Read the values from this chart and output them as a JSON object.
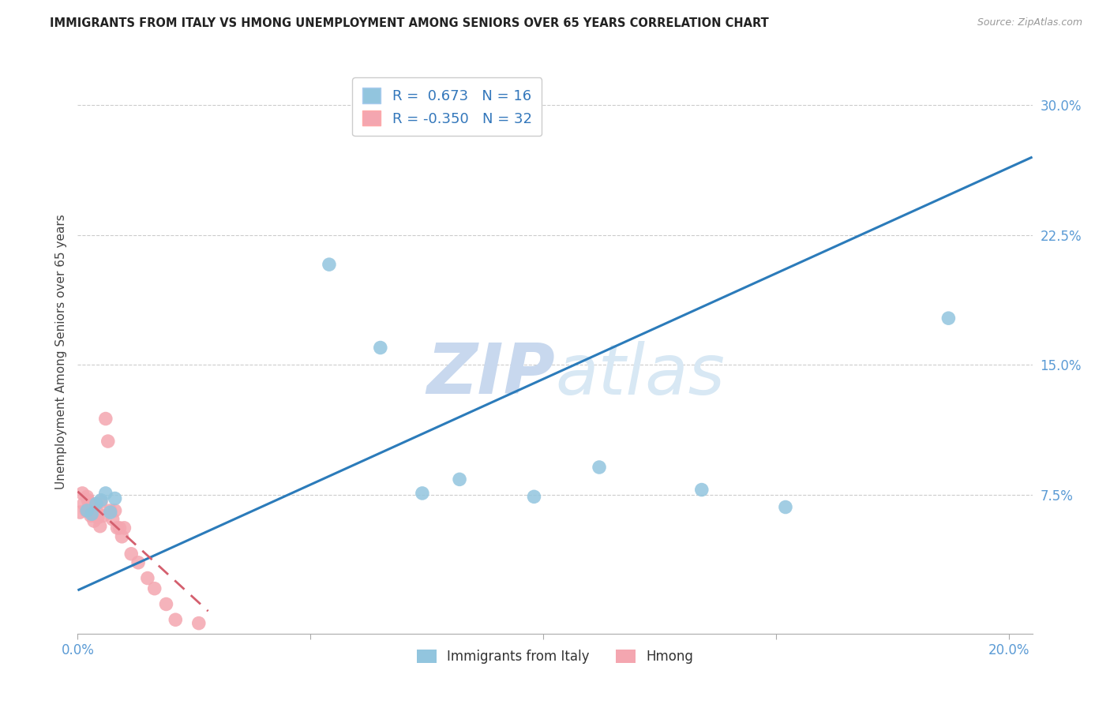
{
  "title": "IMMIGRANTS FROM ITALY VS HMONG UNEMPLOYMENT AMONG SENIORS OVER 65 YEARS CORRELATION CHART",
  "source": "Source: ZipAtlas.com",
  "ylabel": "Unemployment Among Seniors over 65 years",
  "xlim": [
    0.0,
    0.205
  ],
  "ylim": [
    -0.005,
    0.32
  ],
  "legend_italy_R": "0.673",
  "legend_italy_N": "16",
  "legend_hmong_R": "-0.350",
  "legend_hmong_N": "32",
  "italy_color": "#92c5de",
  "hmong_color": "#f4a6b0",
  "italy_line_color": "#2b7bba",
  "hmong_line_color": "#d45f6e",
  "watermark_color": "#dde8f5",
  "grid_color": "#cccccc",
  "tick_color": "#5b9bd5",
  "title_color": "#222222",
  "source_color": "#999999",
  "ylabel_color": "#444444",
  "italy_x": [
    0.002,
    0.003,
    0.004,
    0.005,
    0.006,
    0.007,
    0.008,
    0.054,
    0.065,
    0.074,
    0.082,
    0.098,
    0.112,
    0.134,
    0.152,
    0.187
  ],
  "italy_y": [
    0.066,
    0.064,
    0.07,
    0.072,
    0.076,
    0.065,
    0.073,
    0.208,
    0.16,
    0.076,
    0.084,
    0.074,
    0.091,
    0.078,
    0.068,
    0.177
  ],
  "hmong_x": [
    0.0005,
    0.001,
    0.0013,
    0.0018,
    0.002,
    0.0022,
    0.0025,
    0.0028,
    0.003,
    0.0033,
    0.0035,
    0.004,
    0.0043,
    0.0048,
    0.005,
    0.0055,
    0.006,
    0.0065,
    0.007,
    0.0075,
    0.008,
    0.0085,
    0.009,
    0.0095,
    0.01,
    0.0115,
    0.013,
    0.015,
    0.0165,
    0.019,
    0.021,
    0.026
  ],
  "hmong_y": [
    0.065,
    0.076,
    0.07,
    0.066,
    0.074,
    0.072,
    0.068,
    0.063,
    0.069,
    0.065,
    0.06,
    0.066,
    0.062,
    0.057,
    0.071,
    0.063,
    0.119,
    0.106,
    0.066,
    0.061,
    0.066,
    0.056,
    0.056,
    0.051,
    0.056,
    0.041,
    0.036,
    0.027,
    0.021,
    0.012,
    0.003,
    0.001
  ],
  "italy_trendline_x": [
    0.0,
    0.205
  ],
  "italy_trendline_y": [
    0.02,
    0.27
  ],
  "hmong_trendline_x": [
    0.0,
    0.028
  ],
  "hmong_trendline_y": [
    0.077,
    0.008
  ],
  "ytick_vals": [
    0.075,
    0.15,
    0.225,
    0.3
  ],
  "ytick_labels": [
    "7.5%",
    "15.0%",
    "22.5%",
    "30.0%"
  ],
  "xtick_vals": [
    0.0,
    0.05,
    0.1,
    0.15,
    0.2
  ],
  "xtick_labels": [
    "0.0%",
    "",
    "",
    "",
    "20.0%"
  ]
}
